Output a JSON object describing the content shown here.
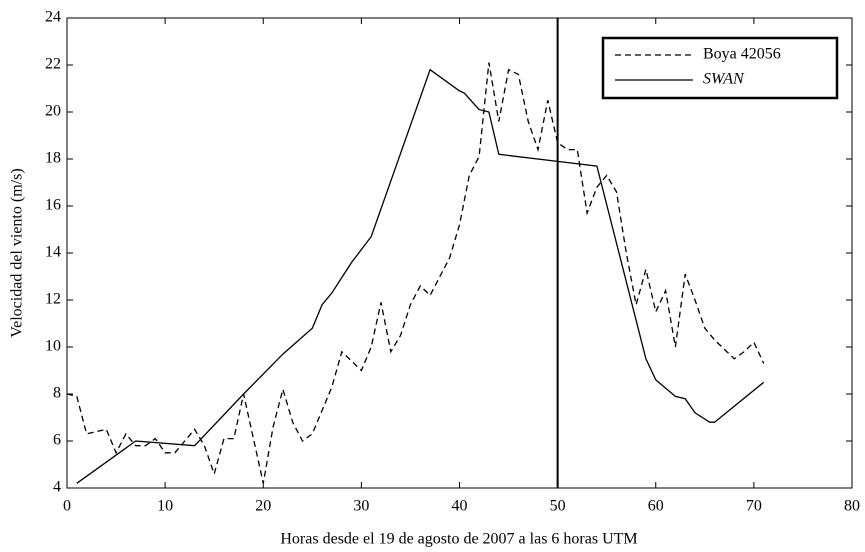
{
  "chart_data": {
    "type": "line",
    "xlabel": "Horas desde el 19 de agosto de 2007 a las 6 horas UTM",
    "ylabel": "Velocidad del viento (m/s)",
    "xlim": [
      0,
      80
    ],
    "ylim": [
      4,
      24
    ],
    "xticks": [
      0,
      10,
      20,
      30,
      40,
      50,
      60,
      70,
      80
    ],
    "yticks": [
      4,
      6,
      8,
      10,
      12,
      14,
      16,
      18,
      20,
      22,
      24
    ],
    "vline": 50,
    "legend": "upper right",
    "series": [
      {
        "name": "Boya 42056",
        "color": "#000000",
        "linestyle": "dashed",
        "x": [
          0,
          1,
          2,
          3,
          4,
          5,
          6,
          7,
          8,
          9,
          10,
          11,
          12,
          13,
          14,
          15,
          16,
          17,
          18,
          19,
          20,
          21,
          22,
          23,
          24,
          25,
          26,
          27,
          28,
          29,
          30,
          31,
          32,
          33,
          34,
          35,
          36,
          37,
          38,
          39,
          40,
          41,
          42,
          43,
          44,
          45,
          46,
          47,
          48,
          49,
          50,
          51,
          52,
          53,
          54,
          55,
          56,
          57,
          58,
          59,
          60,
          61,
          62,
          63,
          64,
          65,
          66,
          67,
          68,
          69,
          70,
          71
        ],
        "values": [
          8.0,
          7.9,
          6.3,
          6.4,
          6.5,
          5.5,
          6.3,
          5.8,
          5.8,
          6.1,
          5.5,
          5.5,
          6.0,
          6.5,
          5.8,
          4.6,
          6.1,
          6.1,
          8.0,
          6.1,
          4.2,
          6.6,
          8.2,
          6.8,
          6.0,
          6.3,
          7.3,
          8.3,
          9.8,
          9.4,
          9.0,
          10.0,
          11.9,
          9.8,
          10.5,
          11.8,
          12.6,
          12.2,
          13.0,
          13.8,
          15.2,
          17.3,
          18.1,
          22.1,
          19.6,
          21.8,
          21.6,
          19.6,
          18.4,
          20.5,
          18.7,
          18.4,
          18.4,
          15.7,
          16.8,
          17.3,
          16.6,
          14.0,
          11.8,
          13.3,
          11.5,
          12.4,
          10.0,
          13.1,
          12.0,
          10.8,
          10.3,
          9.9,
          9.5,
          9.8,
          10.2,
          9.3
        ]
      },
      {
        "name": "SWAN",
        "color": "#000000",
        "linestyle": "solid",
        "x": [
          1,
          7,
          13,
          18,
          22,
          25,
          26,
          27,
          29,
          31,
          37,
          40,
          40.5,
          42,
          43,
          44,
          50,
          54,
          59,
          60,
          62,
          63,
          64,
          65.5,
          66,
          71
        ],
        "values": [
          4.2,
          6.0,
          5.8,
          8.0,
          9.7,
          10.8,
          11.8,
          12.3,
          13.6,
          14.7,
          21.8,
          20.9,
          20.8,
          20.1,
          20.0,
          18.2,
          17.9,
          17.7,
          9.5,
          8.6,
          7.9,
          7.8,
          7.2,
          6.8,
          6.8,
          8.5
        ]
      }
    ]
  }
}
